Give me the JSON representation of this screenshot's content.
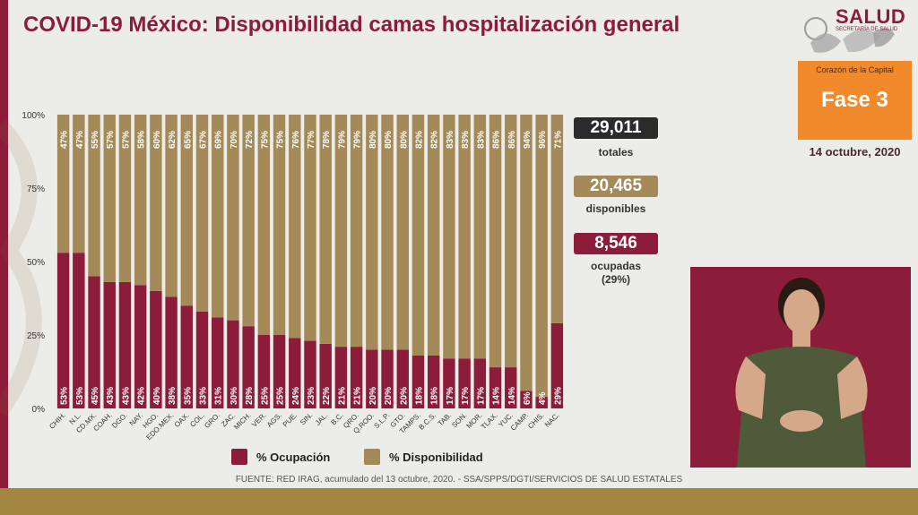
{
  "header": {
    "title": "COVID-19 México: Disponibilidad camas hospitalización general",
    "logo_text": "SALUD",
    "logo_subtext": "SECRETARÍA DE SALUD"
  },
  "phase": {
    "caption": "Corazón de la Capital",
    "label": "Fase 3",
    "date": "14 octubre, 2020"
  },
  "stats": {
    "total_value": "29,011",
    "total_label": "totales",
    "available_value": "20,465",
    "available_label": "disponibles",
    "occupied_value": "8,546",
    "occupied_label": "ocupadas",
    "occupied_pct": "(29%)"
  },
  "legend": {
    "occupancy": "% Ocupación",
    "availability": "% Disponibilidad"
  },
  "source": "FUENTE: RED IRAG, acumulado del 13 octubre, 2020.  -  SSA/SPPS/DGTI/SERVICIOS DE SALUD ESTATALES",
  "colors": {
    "occupancy": "#8c1d3a",
    "availability": "#a38a58",
    "title": "#8c1d3a",
    "phase_box": "#f08a2a",
    "total_box": "#2b2b2b"
  },
  "chart_data": {
    "type": "bar",
    "stacked": true,
    "categories": [
      "CHIH.",
      "N.L.",
      "CD.MX.",
      "COAH.",
      "DGO.",
      "NAY.",
      "HGO.",
      "EDO.MEX.",
      "OAX.",
      "COL.",
      "GRO.",
      "ZAC.",
      "MICH.",
      "VER.",
      "AGS.",
      "PUE.",
      "SIN.",
      "JAL.",
      "B.C.",
      "QRO.",
      "Q.ROO.",
      "S.L.P.",
      "GTO.",
      "TAMPS.",
      "B.C.S.",
      "TAB.",
      "SON.",
      "MOR.",
      "TLAX.",
      "YUC.",
      "CAMP.",
      "CHIS.",
      "NAC."
    ],
    "series": [
      {
        "name": "% Ocupación",
        "values": [
          53,
          53,
          45,
          43,
          43,
          42,
          40,
          38,
          35,
          33,
          31,
          30,
          28,
          25,
          25,
          24,
          23,
          22,
          21,
          21,
          20,
          20,
          20,
          18,
          18,
          17,
          17,
          17,
          14,
          14,
          6,
          4,
          29
        ]
      },
      {
        "name": "% Disponibilidad",
        "values": [
          47,
          47,
          55,
          57,
          57,
          58,
          60,
          62,
          65,
          67,
          69,
          70,
          72,
          75,
          75,
          76,
          77,
          78,
          79,
          79,
          80,
          80,
          80,
          82,
          82,
          83,
          83,
          83,
          86,
          86,
          94,
          96,
          71
        ]
      }
    ],
    "ylim": [
      0,
      100
    ],
    "yticks": [
      "0%",
      "25%",
      "50%",
      "75%",
      "100%"
    ],
    "grid": false,
    "legend_position": "bottom"
  }
}
